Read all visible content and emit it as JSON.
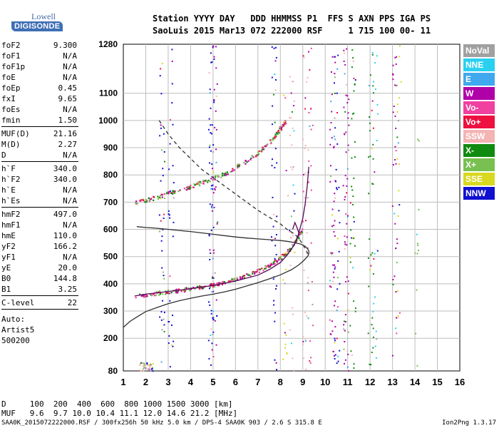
{
  "logo": {
    "line1": "Lowell",
    "line2": "DIGISONDE"
  },
  "header": {
    "row1": "Station YYYY DAY   DDD HHMMSS P1  FFS S AXN PPS IGA PS",
    "row2": "SaoLuis 2015 Mar13 072 222000 RSF     1 715 100 00- 11"
  },
  "params": [
    {
      "k": "foF2",
      "v": "9.300"
    },
    {
      "k": "foF1",
      "v": "N/A"
    },
    {
      "k": "foF1p",
      "v": "N/A"
    },
    {
      "k": "foE",
      "v": "N/A"
    },
    {
      "k": "foEp",
      "v": "0.45"
    },
    {
      "k": "fxI",
      "v": "9.65"
    },
    {
      "k": "foEs",
      "v": "N/A"
    },
    {
      "k": "fmin",
      "v": "1.50"
    },
    {
      "sep": true
    },
    {
      "k": "MUF(D)",
      "v": "21.16"
    },
    {
      "k": "M(D)",
      "v": "2.27"
    },
    {
      "k": "D",
      "v": "N/A"
    },
    {
      "sep": true
    },
    {
      "k": "h`F",
      "v": "340.0"
    },
    {
      "k": "h`F2",
      "v": "340.0"
    },
    {
      "k": "h`E",
      "v": "N/A"
    },
    {
      "k": "h`Es",
      "v": "N/A"
    },
    {
      "sep": true
    },
    {
      "k": "hmF2",
      "v": "497.0"
    },
    {
      "k": "hmF1",
      "v": "N/A"
    },
    {
      "k": "hmE",
      "v": "110.0"
    },
    {
      "k": "yF2",
      "v": "166.2"
    },
    {
      "k": "yF1",
      "v": "N/A"
    },
    {
      "k": "yE",
      "v": "20.0"
    },
    {
      "k": "B0",
      "v": "144.8"
    },
    {
      "k": "B1",
      "v": "3.25"
    },
    {
      "sep": true
    },
    {
      "k": "C-level",
      "v": "22"
    },
    {
      "sep": true
    }
  ],
  "artist": {
    "l1": "Auto:",
    "l2": "Artist5",
    "l3": "500200"
  },
  "legend": [
    {
      "label": "NoVal",
      "color": "#a0a0a0"
    },
    {
      "label": "NNE",
      "color": "#2ad0f0"
    },
    {
      "label": "E",
      "color": "#3fa8ee"
    },
    {
      "label": "W",
      "color": "#b000a8"
    },
    {
      "label": "Vo-",
      "color": "#f040a0"
    },
    {
      "label": "Vo+",
      "color": "#ee1040"
    },
    {
      "label": "SSW",
      "color": "#f4b4b4"
    },
    {
      "label": "X-",
      "color": "#108a10"
    },
    {
      "label": "X+",
      "color": "#78c050"
    },
    {
      "label": "SSE",
      "color": "#d8d820"
    },
    {
      "label": "NNW",
      "color": "#1010d0"
    }
  ],
  "mufTable": {
    "rowD": "D     100  200  400  600  800 1000 1500 3000 [km]",
    "rowMUF": "MUF   9.6  9.7 10.0 10.4 11.1 12.0 14.6 21.2 [MHz]"
  },
  "footer": {
    "left": "SAA0K_2015072222000.RSF / 300fx256h 50 kHz 5.0 km / DPS-4 SAA0K 903 / 2.6 S 315.8 E",
    "right": "Ion2Png 1.3.17"
  },
  "chart_data": {
    "type": "scatter",
    "xlim": [
      1,
      16
    ],
    "ylim": [
      80,
      1280
    ],
    "x_ticks": [
      1,
      2,
      3,
      4,
      5,
      6,
      7,
      8,
      9,
      10,
      11,
      12,
      13,
      14,
      15,
      16
    ],
    "y_ticks": [
      80,
      200,
      300,
      400,
      500,
      600,
      700,
      800,
      900,
      1000,
      1100,
      1280
    ],
    "grid": true,
    "legend_position": "right",
    "series": [
      {
        "style": "solid",
        "color": "#303030",
        "x": [
          1.0,
          1.3,
          1.6,
          2.0,
          2.5,
          3.0,
          3.5,
          4.0,
          4.5,
          5.0,
          5.5,
          6.0,
          6.5,
          7.0,
          7.5,
          8.0,
          8.5,
          8.8,
          9.0,
          9.15,
          9.25,
          9.28
        ],
        "y": [
          240,
          262,
          278,
          298,
          313,
          327,
          338,
          347,
          355,
          362,
          370,
          380,
          392,
          404,
          418,
          433,
          452,
          468,
          482,
          495,
          505,
          518
        ]
      },
      {
        "style": "solid",
        "color": "#303030",
        "x": [
          9.28,
          9.22,
          9.1,
          8.9,
          8.6,
          8.3,
          8.0,
          7.5,
          7.0,
          6.5,
          6.0,
          5.5,
          5.0,
          4.5,
          4.0,
          3.5,
          3.0,
          2.5,
          2.0,
          1.6
        ],
        "y": [
          518,
          528,
          538,
          546,
          552,
          556,
          559,
          562,
          565,
          568,
          572,
          577,
          582,
          587,
          592,
          596,
          600,
          604,
          607,
          610
        ]
      },
      {
        "style": "solid",
        "color": "#58085a",
        "x": [
          1.5,
          2.0,
          3.0,
          4.0,
          5.0,
          6.0,
          7.0,
          7.5,
          8.0,
          8.3,
          8.6,
          8.8,
          9.0,
          9.1,
          9.2,
          9.27
        ],
        "y": [
          355,
          362,
          372,
          382,
          394,
          410,
          432,
          452,
          478,
          505,
          540,
          580,
          640,
          690,
          760,
          830
        ]
      },
      {
        "style": "solid",
        "color": "#58085a",
        "x": [
          8.55,
          8.65,
          8.75,
          8.85
        ],
        "y": [
          600,
          625,
          605,
          580
        ]
      },
      {
        "style": "dashed",
        "color": "#303030",
        "x": [
          2.6,
          3.0,
          3.5,
          4.0,
          4.5,
          5.0,
          5.5,
          6.0,
          6.5,
          7.0,
          7.5,
          8.0,
          8.3,
          8.6,
          8.8,
          9.0,
          9.2,
          9.3
        ],
        "y": [
          1000,
          950,
          900,
          860,
          820,
          790,
          760,
          730,
          700,
          670,
          645,
          620,
          600,
          585,
          570,
          545,
          515,
          500
        ]
      }
    ],
    "traces": [
      {
        "name": "F2 trace O",
        "x": [
          1.5,
          2.0,
          2.5,
          3.0,
          3.5,
          4.0,
          4.5,
          5.0,
          5.5,
          6.0,
          6.5,
          7.0,
          7.5,
          7.8,
          8.1,
          8.4,
          8.7,
          9.0
        ],
        "y": [
          355,
          362,
          368,
          373,
          378,
          384,
          390,
          398,
          408,
          418,
          432,
          450,
          470,
          485,
          505,
          530,
          565,
          600
        ]
      },
      {
        "name": "F2 trace 2hop",
        "x": [
          1.5,
          2.0,
          2.5,
          3.0,
          3.5,
          4.0,
          4.5,
          5.0,
          5.5,
          6.0,
          6.5,
          7.0,
          7.5,
          7.8,
          8.0,
          8.2
        ],
        "y": [
          700,
          710,
          720,
          735,
          748,
          760,
          775,
          790,
          805,
          830,
          855,
          885,
          920,
          950,
          975,
          1000
        ]
      }
    ]
  }
}
